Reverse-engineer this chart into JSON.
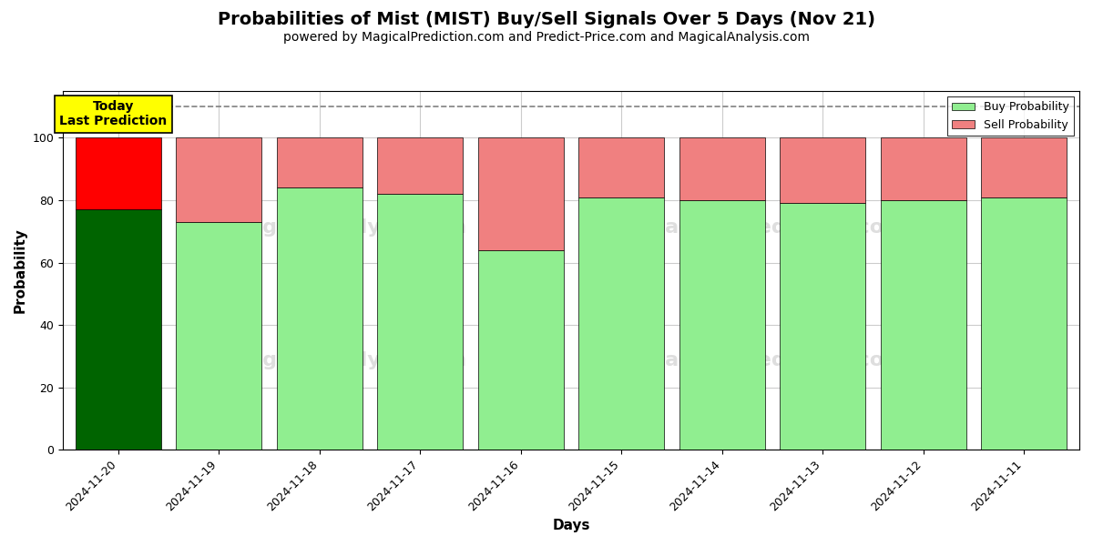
{
  "title": "Probabilities of Mist (MIST) Buy/Sell Signals Over 5 Days (Nov 21)",
  "subtitle": "powered by MagicalPrediction.com and Predict-Price.com and MagicalAnalysis.com",
  "xlabel": "Days",
  "ylabel": "Probability",
  "dates": [
    "2024-11-20",
    "2024-11-19",
    "2024-11-18",
    "2024-11-17",
    "2024-11-16",
    "2024-11-15",
    "2024-11-14",
    "2024-11-13",
    "2024-11-12",
    "2024-11-11"
  ],
  "buy_values": [
    77,
    73,
    84,
    82,
    64,
    81,
    80,
    79,
    80,
    81
  ],
  "sell_values": [
    23,
    27,
    16,
    18,
    36,
    19,
    20,
    21,
    20,
    19
  ],
  "buy_colors": [
    "#006400",
    "#90EE90",
    "#90EE90",
    "#90EE90",
    "#90EE90",
    "#90EE90",
    "#90EE90",
    "#90EE90",
    "#90EE90",
    "#90EE90"
  ],
  "sell_colors": [
    "#FF0000",
    "#F08080",
    "#F08080",
    "#F08080",
    "#F08080",
    "#F08080",
    "#F08080",
    "#F08080",
    "#F08080",
    "#F08080"
  ],
  "ylim": [
    0,
    115
  ],
  "yticks": [
    0,
    20,
    40,
    60,
    80,
    100
  ],
  "dashed_line_y": 110,
  "annotation_text": "Today\nLast Prediction",
  "annotation_bg": "#FFFF00",
  "legend_buy_label": "Buy Probability",
  "legend_sell_label": "Sell Probability",
  "fig_width": 12,
  "fig_height": 6,
  "background_color": "#FFFFFF",
  "plot_bg_color": "#FFFFFF",
  "grid_color": "#CCCCCC",
  "title_fontsize": 14,
  "subtitle_fontsize": 10,
  "axis_label_fontsize": 11,
  "tick_fontsize": 9
}
